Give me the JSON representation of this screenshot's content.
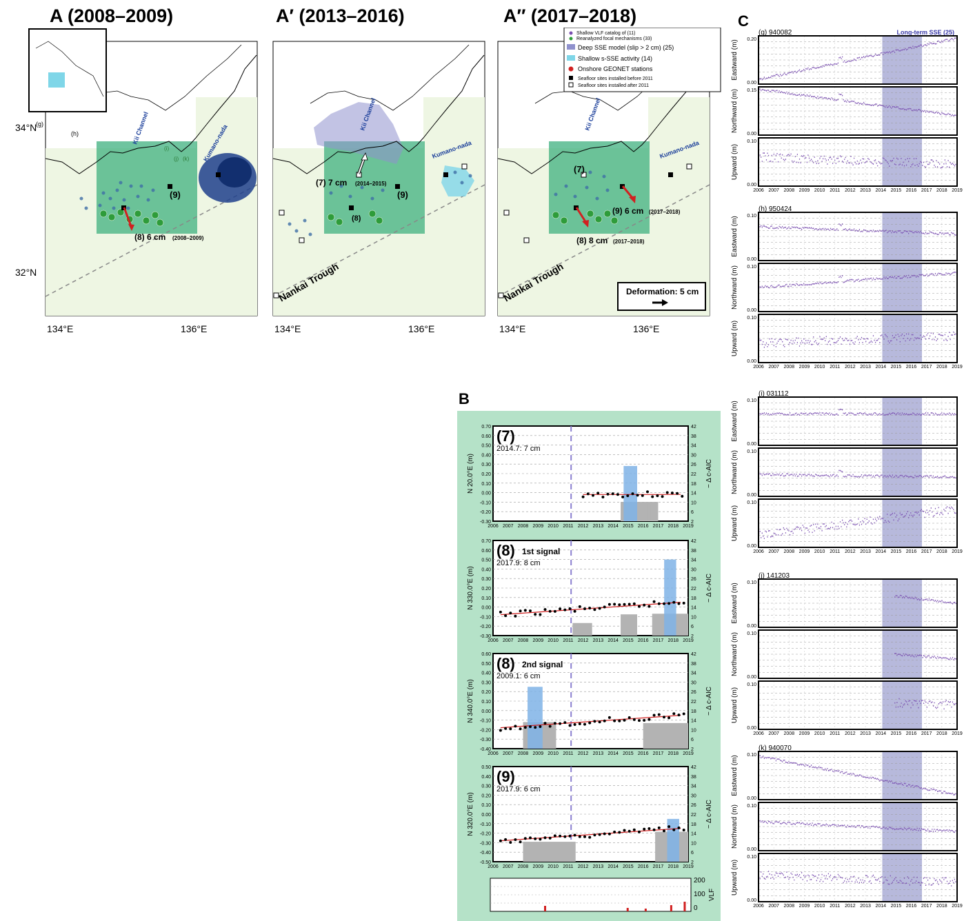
{
  "panel_a": {
    "titles": [
      "A (2008–2009)",
      "A′ (2013–2016)",
      "A″ (2017–2018)"
    ],
    "lat_labels": [
      "34°N",
      "32°N"
    ],
    "lon_labels": [
      "134°E",
      "136°E"
    ],
    "region_labels": {
      "kii": "Kii Channel",
      "kumano": "Kumano-nada",
      "trough": "Nankai Trough"
    },
    "station_letters": [
      "(g)",
      "(h)",
      "(i)",
      "(j)",
      "(k)"
    ],
    "site_labels": [
      "(9)",
      "(8)",
      "(7)"
    ],
    "vectors": {
      "a_8": "(8) 6 cm",
      "a_8_period": "(2008–2009)",
      "ap_7": "(7) 7 cm",
      "ap_7_period": "(2014–2015)",
      "app_9": "(9) 6 cm",
      "app_9_period": "(2017–2018)",
      "app_8": "(8) 8 cm",
      "app_8_period": "(2017–2018)"
    },
    "scale_label": "Deformation: 5 cm",
    "legend": [
      "Shallow VLF catalog of (11)",
      "Reanalyzed focal mechanisms (33)",
      "Deep SSE model (slip > 2 cm) (25)",
      "Shallow s-SSE activity (14)",
      "Onshore GEONET stations",
      "Seafloor sites installed before 2011",
      "Seafloor sites installed after 2011"
    ]
  },
  "panel_b": {
    "letter": "B",
    "x_ticks": [
      "2006",
      "2007",
      "2008",
      "2009",
      "2010",
      "2011",
      "2012",
      "2013",
      "2014",
      "2015",
      "2016",
      "2017",
      "2018",
      "2019"
    ],
    "right_axis_label": "− Δ c-AIC",
    "vlf_label": "VLF",
    "vlf_ticks": [
      "200",
      "100",
      "0"
    ],
    "plots": [
      {
        "site": "(7)",
        "subtitle": "",
        "note": "2014.7: 7 cm",
        "ylabel": "N 20.0°E (m)",
        "yticks": [
          "0.70",
          "0.60",
          "0.50",
          "0.40",
          "0.30",
          "0.20",
          "0.10",
          "0.00",
          "-0.10",
          "-0.20",
          "-0.30"
        ],
        "rticks": [
          "42",
          "38",
          "34",
          "30",
          "26",
          "22",
          "18",
          "14",
          "10",
          "6",
          "2"
        ]
      },
      {
        "site": "(8)",
        "subtitle": "1st signal",
        "note": "2017.9: 8 cm",
        "ylabel": "N 330.0°E (m)",
        "yticks": [
          "0.70",
          "0.60",
          "0.50",
          "0.40",
          "0.30",
          "0.20",
          "0.10",
          "0.00",
          "-0.10",
          "-0.20",
          "-0.30"
        ],
        "rticks": [
          "42",
          "38",
          "34",
          "30",
          "26",
          "22",
          "18",
          "14",
          "10",
          "6",
          "2"
        ]
      },
      {
        "site": "(8)",
        "subtitle": "2nd signal",
        "note": "2009.1: 6 cm",
        "ylabel": "N 340.0°E (m)",
        "yticks": [
          "0.60",
          "0.50",
          "0.40",
          "0.30",
          "0.20",
          "0.10",
          "0.00",
          "-0.10",
          "-0.20",
          "-0.30",
          "-0.40"
        ],
        "rticks": [
          "42",
          "38",
          "34",
          "30",
          "26",
          "22",
          "18",
          "14",
          "10",
          "6",
          "2"
        ]
      },
      {
        "site": "(9)",
        "subtitle": "",
        "note": "2017.9: 6 cm",
        "ylabel": "N 320.0°E (m)",
        "yticks": [
          "0.50",
          "0.40",
          "0.30",
          "0.20",
          "0.10",
          "0.00",
          "-0.10",
          "-0.20",
          "-0.30",
          "-0.40",
          "-0.50"
        ],
        "rticks": [
          "42",
          "38",
          "34",
          "30",
          "26",
          "22",
          "18",
          "14",
          "10",
          "6",
          "2"
        ]
      }
    ]
  },
  "panel_c": {
    "letter": "C",
    "shade_label": "Long-term SSE (25)",
    "x_ticks": [
      "2006",
      "2007",
      "2008",
      "2009",
      "2010",
      "2011",
      "2012",
      "2013",
      "2014",
      "2015",
      "2016",
      "2017",
      "2018",
      "2019"
    ],
    "components": [
      "Eastward (m)",
      "Northward (m)",
      "Upward (m)"
    ],
    "stations": [
      {
        "label": "(g) 940082",
        "top": [
          "0.20",
          "0.15",
          "0.10"
        ],
        "bottom": "0.00"
      },
      {
        "label": "(h) 950424",
        "top": [
          "0.10",
          "0.10",
          "0.10"
        ],
        "bottom": "0.00"
      },
      {
        "label": "(i) 031112",
        "top": [
          "0.10",
          "0.10",
          "0.10"
        ],
        "bottom": "0.00"
      },
      {
        "label": "(j) 141203",
        "top": [
          "0.10",
          "0.10",
          "0.10"
        ],
        "bottom": "0.00"
      },
      {
        "label": "(k) 940070",
        "top": [
          "0.10",
          "0.10",
          "0.10"
        ],
        "bottom": "0.00"
      }
    ]
  },
  "colors": {
    "purple": "#7a4fb0",
    "green_box": "#3fb07f",
    "shade": "#b7b9dc",
    "red": "#d12020",
    "blue_bar": "#7fb3e6",
    "gray_bar": "#b3b3b3",
    "panel_b_bg": "#b5e2c8"
  }
}
